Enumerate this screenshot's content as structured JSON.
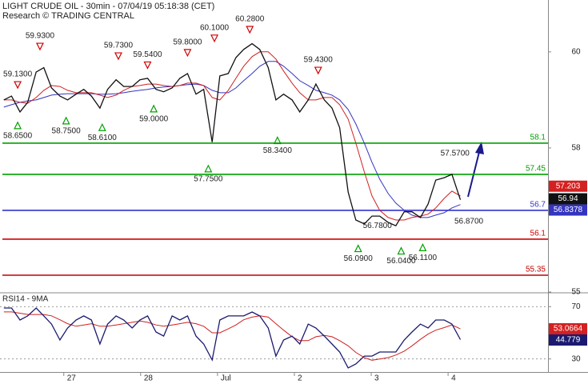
{
  "chart_data": [
    {
      "type": "line",
      "title": "LIGHT CRUDE OIL - 30min - 07/04/19 05:18:38 (CET)",
      "subtitle": "Research © TRADING CENTRAL",
      "x": [
        0.22,
        0.32,
        0.43,
        0.53,
        0.64,
        0.74,
        0.84,
        0.95,
        1.05,
        1.16,
        1.26,
        1.36,
        1.47,
        1.57,
        1.68,
        1.78,
        1.89,
        1.99,
        2.09,
        2.2,
        2.3,
        2.41,
        2.51,
        2.61,
        2.72,
        2.82,
        2.93,
        3.03,
        3.14,
        3.24,
        3.34,
        3.45,
        3.55,
        3.66,
        3.76,
        3.86,
        3.97,
        4.07,
        4.18,
        4.28,
        4.39,
        4.49,
        4.59,
        4.7,
        4.8,
        4.91,
        5.01,
        5.11,
        5.22,
        5.32,
        5.43,
        5.53,
        5.64,
        5.74,
        5.84,
        5.95,
        6.05,
        6.16
      ],
      "xlim": [
        0.17,
        7.3
      ],
      "ylim": [
        55,
        61.08
      ],
      "yticks": [
        55,
        58,
        60
      ],
      "series": [
        {
          "color": "#111111",
          "values": [
            59.0,
            59.08,
            58.75,
            58.95,
            59.58,
            59.67,
            59.25,
            59.08,
            59.0,
            59.12,
            59.22,
            59.08,
            58.83,
            59.22,
            59.42,
            59.28,
            59.28,
            59.42,
            59.45,
            59.22,
            59.17,
            59.25,
            59.45,
            59.55,
            59.12,
            59.22,
            58.12,
            59.5,
            59.55,
            59.88,
            60.05,
            60.17,
            60.05,
            59.67,
            59.0,
            59.12,
            59.0,
            58.75,
            59.0,
            59.33,
            59.0,
            58.83,
            58.42,
            57.08,
            56.5,
            56.42,
            56.58,
            56.58,
            56.45,
            56.38,
            56.67,
            56.67,
            56.55,
            56.83,
            57.33,
            57.38,
            57.45,
            56.92
          ]
        },
        {
          "color": "#d02020",
          "values": [
            59.0,
            59.0,
            58.95,
            58.93,
            59.05,
            59.2,
            59.3,
            59.28,
            59.2,
            59.15,
            59.15,
            59.15,
            59.1,
            59.05,
            59.1,
            59.2,
            59.28,
            59.3,
            59.33,
            59.33,
            59.3,
            59.28,
            59.3,
            59.35,
            59.35,
            59.3,
            59.05,
            59.0,
            59.2,
            59.45,
            59.7,
            59.9,
            60.0,
            60.0,
            59.85,
            59.6,
            59.35,
            59.15,
            59.0,
            59.0,
            59.05,
            59.05,
            58.9,
            58.6,
            58.1,
            57.5,
            57.0,
            56.7,
            56.55,
            56.5,
            56.5,
            56.55,
            56.58,
            56.62,
            56.75,
            56.95,
            57.1,
            57.0
          ]
        },
        {
          "color": "#3434c0",
          "values": [
            58.85,
            58.9,
            58.95,
            58.98,
            59.0,
            59.05,
            59.1,
            59.12,
            59.13,
            59.13,
            59.13,
            59.13,
            59.12,
            59.12,
            59.13,
            59.15,
            59.18,
            59.2,
            59.22,
            59.25,
            59.27,
            59.28,
            59.3,
            59.32,
            59.33,
            59.3,
            59.2,
            59.15,
            59.15,
            59.25,
            59.4,
            59.55,
            59.7,
            59.8,
            59.8,
            59.7,
            59.55,
            59.4,
            59.3,
            59.2,
            59.15,
            59.1,
            59.0,
            58.8,
            58.5,
            58.1,
            57.7,
            57.35,
            57.05,
            56.85,
            56.7,
            56.6,
            56.55,
            56.55,
            56.6,
            56.65,
            56.75,
            56.82
          ]
        }
      ],
      "levels": [
        {
          "value": 58.1,
          "color": "#00a000"
        },
        {
          "value": 57.45,
          "color": "#00a000"
        },
        {
          "value": 56.7,
          "color": "#3333cc"
        },
        {
          "value": 56.1,
          "color": "#d00000"
        },
        {
          "value": 55.35,
          "color": "#c00000"
        }
      ],
      "annotations": [
        {
          "x": 0.4,
          "value": 59.13,
          "label": "59.1300",
          "marker": "down"
        },
        {
          "x": 0.4,
          "value": 58.65,
          "label": "58.6500",
          "marker": "up"
        },
        {
          "x": 0.69,
          "value": 59.93,
          "label": "59.9300",
          "marker": "down"
        },
        {
          "x": 1.03,
          "value": 58.75,
          "label": "58.7500",
          "marker": "up"
        },
        {
          "x": 1.5,
          "value": 58.61,
          "label": "58.6100",
          "marker": "up"
        },
        {
          "x": 1.71,
          "value": 59.73,
          "label": "59.7300",
          "marker": "down"
        },
        {
          "x": 2.09,
          "value": 59.54,
          "label": "59.5400",
          "marker": "down"
        },
        {
          "x": 2.17,
          "value": 59.0,
          "label": "59.0000",
          "marker": "up"
        },
        {
          "x": 2.61,
          "value": 59.8,
          "label": "59.8000",
          "marker": "down"
        },
        {
          "x": 2.88,
          "value": 57.75,
          "label": "57.7500",
          "marker": "up"
        },
        {
          "x": 2.96,
          "value": 60.1,
          "label": "60.1000",
          "marker": "down"
        },
        {
          "x": 3.42,
          "value": 60.28,
          "label": "60.2800",
          "marker": "down"
        },
        {
          "x": 3.78,
          "value": 58.34,
          "label": "58.3400",
          "marker": "up"
        },
        {
          "x": 4.31,
          "value": 59.43,
          "label": "59.4300",
          "marker": "down"
        },
        {
          "x": 4.83,
          "value": 56.09,
          "label": "56.0900",
          "marker": "up"
        },
        {
          "x": 5.08,
          "value": 56.78,
          "label": "56.7800",
          "marker": null
        },
        {
          "x": 5.39,
          "value": 56.04,
          "label": "56.0400",
          "marker": "up"
        },
        {
          "x": 5.67,
          "value": 56.11,
          "label": "56.1100",
          "marker": "up"
        },
        {
          "x": 6.09,
          "value": 57.57,
          "label": "57.5700",
          "marker": null
        },
        {
          "x": 6.27,
          "value": 56.87,
          "label": "56.8700",
          "marker": null
        }
      ],
      "tags": [
        {
          "value": 57.203,
          "color": "#d42020"
        },
        {
          "value": 56.94,
          "color": "#111111"
        },
        {
          "value": 56.8378,
          "color": "#3434c0"
        }
      ]
    },
    {
      "type": "line",
      "title": "RSI14 - 9MA",
      "x": [
        0.22,
        0.32,
        0.43,
        0.53,
        0.64,
        0.74,
        0.84,
        0.95,
        1.05,
        1.16,
        1.26,
        1.36,
        1.47,
        1.57,
        1.68,
        1.78,
        1.89,
        1.99,
        2.09,
        2.2,
        2.3,
        2.41,
        2.51,
        2.61,
        2.72,
        2.82,
        2.93,
        3.03,
        3.14,
        3.24,
        3.34,
        3.45,
        3.55,
        3.66,
        3.76,
        3.86,
        3.97,
        4.07,
        4.18,
        4.28,
        4.39,
        4.49,
        4.59,
        4.7,
        4.8,
        4.91,
        5.01,
        5.11,
        5.22,
        5.32,
        5.43,
        5.53,
        5.64,
        5.74,
        5.84,
        5.95,
        6.05,
        6.16
      ],
      "xlim": [
        0.17,
        7.3
      ],
      "xticks": [
        {
          "value": 1,
          "label": "27"
        },
        {
          "value": 2,
          "label": "28"
        },
        {
          "value": 3,
          "label": "Jul"
        },
        {
          "value": 4,
          "label": "2"
        },
        {
          "value": 5,
          "label": "3"
        },
        {
          "value": 6,
          "label": "4"
        }
      ],
      "ylim": [
        20,
        80
      ],
      "yticks": [
        30,
        70
      ],
      "grid": true,
      "series": [
        {
          "color": "#1a1a70",
          "values": [
            69,
            69,
            59.8,
            62.9,
            69,
            62.9,
            56.7,
            44.5,
            53.7,
            59.8,
            62.9,
            59.8,
            41.4,
            56.7,
            62.9,
            59.8,
            53.7,
            59.8,
            62.9,
            50.6,
            47.5,
            62.9,
            59.8,
            62.9,
            47.5,
            41.4,
            29.2,
            59.8,
            62.9,
            62.9,
            62.9,
            65.9,
            62.9,
            53.7,
            32.2,
            44.5,
            47.5,
            41.4,
            56.7,
            53.7,
            47.5,
            41.4,
            35.3,
            23.1,
            26.1,
            32.2,
            32.2,
            35.3,
            35.3,
            35.3,
            44.5,
            50.6,
            56.7,
            53.7,
            59.8,
            59.8,
            56.7,
            44.8
          ]
        },
        {
          "color": "#d02020",
          "values": [
            66,
            66,
            65,
            64,
            64,
            64,
            63,
            60,
            57,
            55,
            56,
            57,
            55,
            55,
            56,
            57,
            58,
            59,
            58,
            56,
            55,
            56,
            57,
            58,
            57,
            55,
            50,
            50,
            53,
            56,
            60,
            62,
            63,
            62,
            57,
            52,
            47,
            44,
            44,
            47,
            48,
            47,
            44,
            40,
            35,
            31,
            29,
            30,
            31,
            33,
            36,
            40,
            45,
            49,
            52,
            54,
            56,
            53
          ]
        }
      ],
      "tags": [
        {
          "value": 53.0664,
          "color": "#d42020"
        },
        {
          "value": 44.779,
          "color": "#1a1a70"
        }
      ]
    }
  ]
}
